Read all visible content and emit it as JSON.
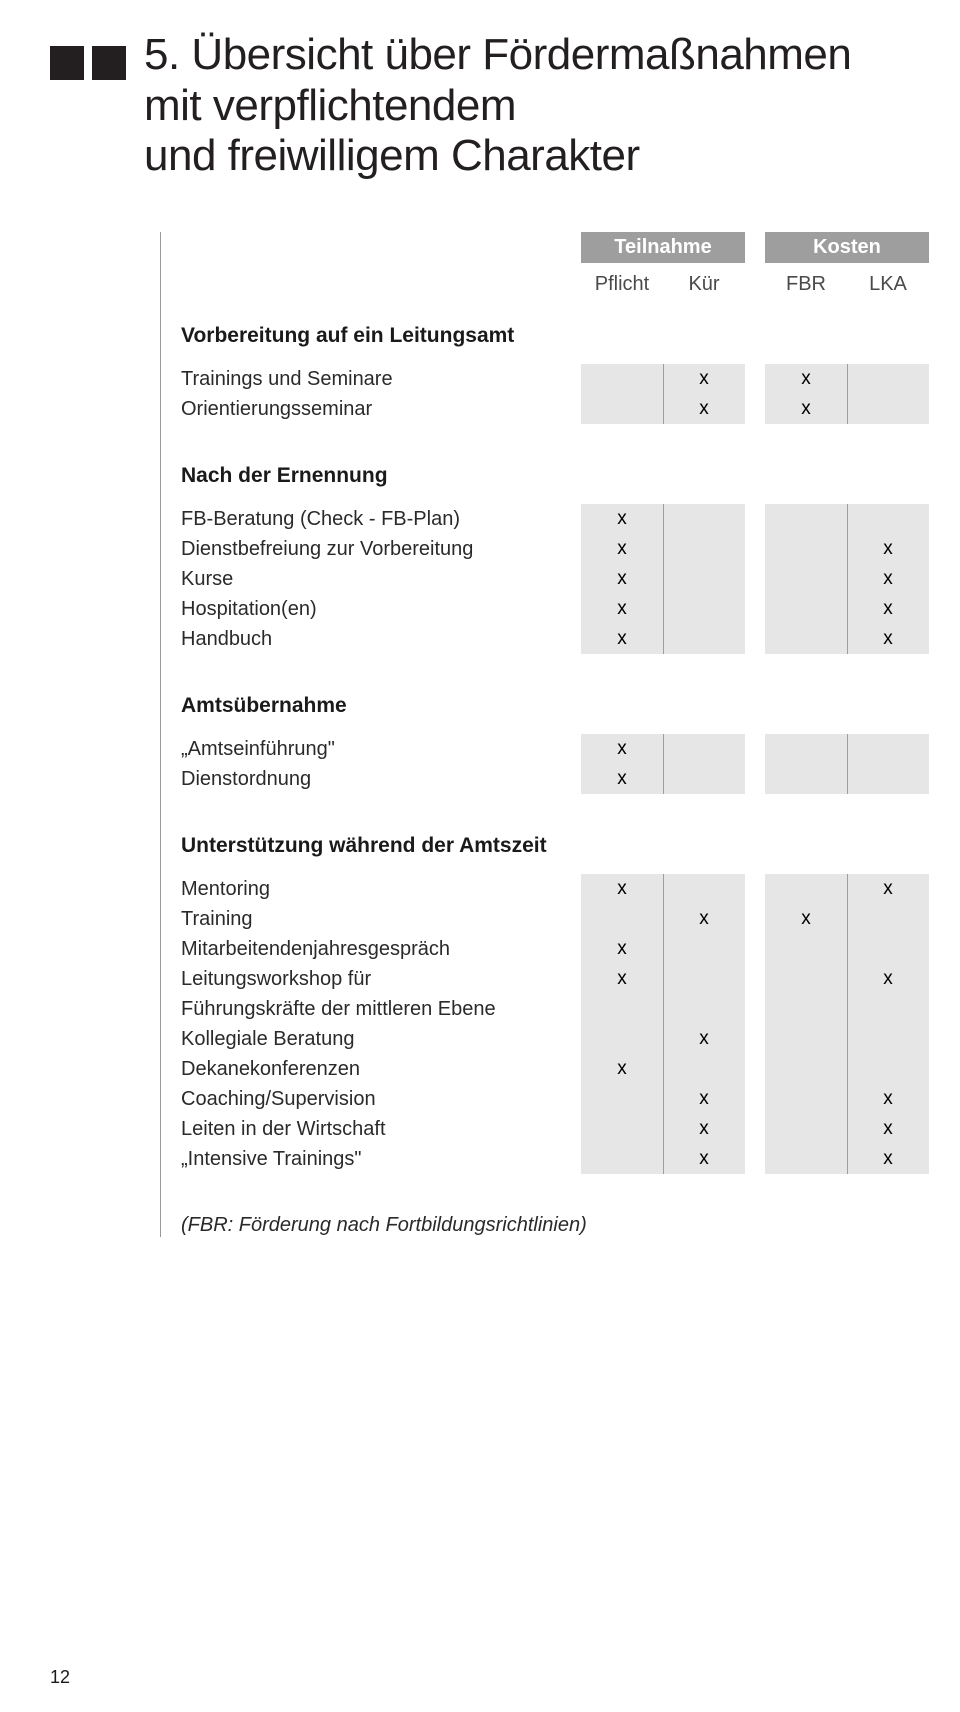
{
  "title": {
    "line1": "5. Übersicht über Fördermaßnahmen",
    "line2": "mit verpflichtendem",
    "line3": "und freiwilligem Charakter"
  },
  "columns": {
    "teilnahme": "Teilnahme",
    "kosten": "Kosten",
    "pflicht": "Pflicht",
    "kuer": "Kür",
    "fbr": "FBR",
    "lka": "LKA"
  },
  "sections": [
    {
      "title": "Vorbereitung auf ein Leitungsamt",
      "rows": [
        {
          "label": "Trainings und Seminare",
          "pflicht": "",
          "kuer": "x",
          "fbr": "x",
          "lka": ""
        },
        {
          "label": "Orientierungsseminar",
          "pflicht": "",
          "kuer": "x",
          "fbr": "x",
          "lka": ""
        }
      ]
    },
    {
      "title": "Nach der Ernennung",
      "rows": [
        {
          "label": "FB-Beratung (Check - FB-Plan)",
          "pflicht": "x",
          "kuer": "",
          "fbr": "",
          "lka": ""
        },
        {
          "label": "Dienstbefreiung zur Vorbereitung",
          "pflicht": "x",
          "kuer": "",
          "fbr": "",
          "lka": "x"
        },
        {
          "label": "Kurse",
          "pflicht": "x",
          "kuer": "",
          "fbr": "",
          "lka": "x"
        },
        {
          "label": "Hospitation(en)",
          "pflicht": "x",
          "kuer": "",
          "fbr": "",
          "lka": "x"
        },
        {
          "label": "Handbuch",
          "pflicht": "x",
          "kuer": "",
          "fbr": "",
          "lka": "x"
        }
      ]
    },
    {
      "title": "Amtsübernahme",
      "rows": [
        {
          "label": "„Amtseinführung\"",
          "pflicht": "x",
          "kuer": "",
          "fbr": "",
          "lka": ""
        },
        {
          "label": "Dienstordnung",
          "pflicht": "x",
          "kuer": "",
          "fbr": "",
          "lka": ""
        }
      ]
    },
    {
      "title": "Unterstützung während der Amtszeit",
      "rows": [
        {
          "label": "Mentoring",
          "pflicht": "x",
          "kuer": "",
          "fbr": "",
          "lka": "x"
        },
        {
          "label": "Training",
          "pflicht": "",
          "kuer": "x",
          "fbr": "x",
          "lka": ""
        },
        {
          "label": "Mitarbeitendenjahresgespräch",
          "pflicht": "x",
          "kuer": "",
          "fbr": "",
          "lka": ""
        },
        {
          "label": "Leitungsworkshop für",
          "pflicht": "x",
          "kuer": "",
          "fbr": "",
          "lka": "x"
        },
        {
          "label": "Führungskräfte der mittleren Ebene",
          "pflicht": "",
          "kuer": "",
          "fbr": "",
          "lka": ""
        },
        {
          "label": "Kollegiale Beratung",
          "pflicht": "",
          "kuer": "x",
          "fbr": "",
          "lka": ""
        },
        {
          "label": "Dekanekonferenzen",
          "pflicht": "x",
          "kuer": "",
          "fbr": "",
          "lka": ""
        },
        {
          "label": "Coaching/Supervision",
          "pflicht": "",
          "kuer": "x",
          "fbr": "",
          "lka": "x"
        },
        {
          "label": "Leiten in der Wirtschaft",
          "pflicht": "",
          "kuer": "x",
          "fbr": "",
          "lka": "x"
        },
        {
          "label": "„Intensive Trainings\"",
          "pflicht": "",
          "kuer": "x",
          "fbr": "",
          "lka": "x"
        }
      ]
    }
  ],
  "footnote": "(FBR: Förderung nach Fortbildungsrichtlinien)",
  "page_number": "12",
  "colors": {
    "square": "#231f20",
    "pill_bg": "#9e9e9e",
    "cell_bg": "#e6e6e6",
    "text": "#1a1a1a"
  }
}
